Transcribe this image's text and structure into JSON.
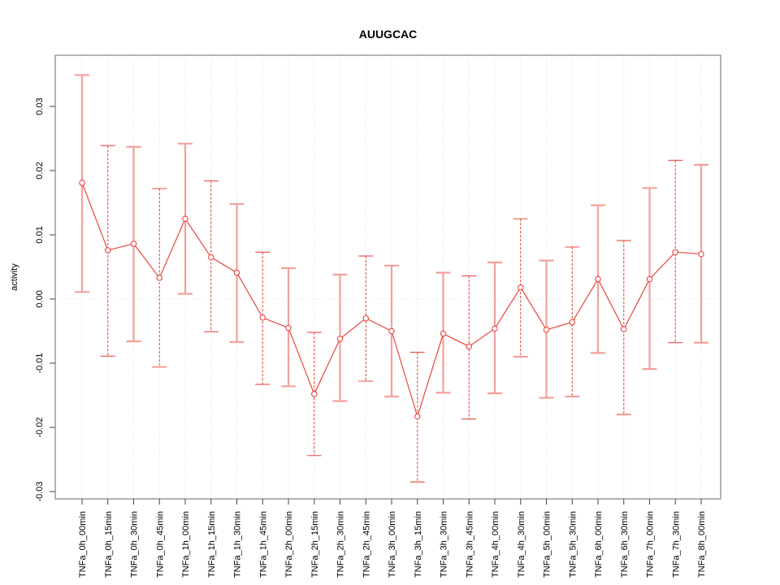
{
  "colors": {
    "series": "#e8463c",
    "marker_fill": "#ffffff",
    "error_bar_solid": "#f5a09b",
    "error_bar_dashed": "#ed4c43",
    "grid": "#dcdcdc",
    "frame": "#8a8a8a",
    "tick": "#444444",
    "text": "#000000",
    "background": "#ffffff"
  },
  "chart_data": {
    "type": "line",
    "title": "AUUGCAC",
    "xlabel": "",
    "ylabel": "activity",
    "ylim": [
      -0.031,
      0.038
    ],
    "grid": "vertical dotted gridline at each category plus dotted zero line",
    "legend": "none",
    "marker": "open-circle",
    "yticks": [
      -0.03,
      -0.02,
      -0.01,
      0.0,
      0.01,
      0.02,
      0.03
    ],
    "ytick_labels": [
      "-0.03",
      "-0.02",
      "-0.01",
      "0.00",
      "0.01",
      "0.02",
      "0.03"
    ],
    "categories": [
      "TNFa_0h_00min",
      "TNFa_0h_15min",
      "TNFa_0h_30min",
      "TNFa_0h_45min",
      "TNFa_1h_00min",
      "TNFa_1h_15min",
      "TNFa_1h_30min",
      "TNFa_1h_45min",
      "TNFa_2h_00min",
      "TNFa_2h_15min",
      "TNFa_2h_30min",
      "TNFa_2h_45min",
      "TNFa_3h_00min",
      "TNFa_3h_15min",
      "TNFa_3h_30min",
      "TNFa_3h_45min",
      "TNFa_4h_00min",
      "TNFa_4h_30min",
      "TNFa_5h_00min",
      "TNFa_5h_30min",
      "TNFa_6h_00min",
      "TNFa_6h_30min",
      "TNFa_7h_00min",
      "TNFa_7h_30min",
      "TNFa_8h_00min"
    ],
    "series": [
      {
        "name": "activity",
        "values": [
          0.0181,
          0.0076,
          0.0086,
          0.0033,
          0.0125,
          0.0065,
          0.0041,
          -0.0029,
          -0.0045,
          -0.0148,
          -0.0062,
          -0.003,
          -0.005,
          -0.0183,
          -0.0054,
          -0.0074,
          -0.0046,
          0.0018,
          -0.0048,
          -0.0036,
          0.0031,
          -0.0047,
          0.0031,
          0.0073,
          0.007
        ]
      }
    ],
    "error_low": [
      0.0011,
      -0.0089,
      -0.0066,
      -0.0106,
      0.0008,
      -0.0051,
      -0.0067,
      -0.0133,
      -0.0136,
      -0.0244,
      -0.0159,
      -0.0128,
      -0.0152,
      -0.0285,
      -0.0146,
      -0.0187,
      -0.0147,
      -0.009,
      -0.0154,
      -0.0152,
      -0.0084,
      -0.018,
      -0.0109,
      -0.0068,
      -0.0068
    ],
    "error_high": [
      0.0349,
      0.0239,
      0.0237,
      0.0172,
      0.0242,
      0.0184,
      0.0148,
      0.0073,
      0.0048,
      -0.0052,
      0.0038,
      0.0067,
      0.0052,
      -0.0083,
      0.0041,
      0.0036,
      0.0057,
      0.0125,
      0.006,
      0.0081,
      0.0146,
      0.0091,
      0.0173,
      0.0216,
      0.0209
    ],
    "error_bar_styles": [
      "solid",
      "dashed",
      "solid",
      "dashed",
      "solid",
      "dashed",
      "solid",
      "dashed",
      "solid",
      "dashed",
      "solid",
      "dashed",
      "solid",
      "dashed",
      "solid",
      "dashed",
      "solid",
      "dashed",
      "solid",
      "dashed",
      "solid",
      "dashed",
      "solid",
      "dashed",
      "solid"
    ]
  }
}
